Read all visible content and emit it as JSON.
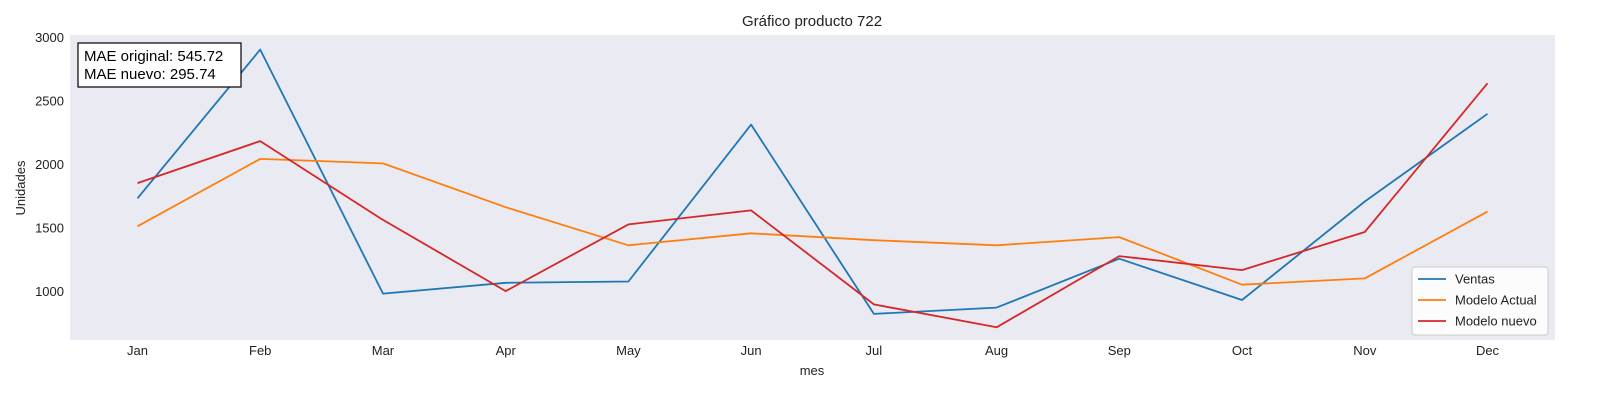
{
  "chart_data": {
    "type": "line",
    "title": "Gráfico producto 722",
    "xlabel": "mes",
    "ylabel": "Unidades",
    "categories": [
      "Jan",
      "Feb",
      "Mar",
      "Apr",
      "May",
      "Jun",
      "Jul",
      "Aug",
      "Sep",
      "Oct",
      "Nov",
      "Dec"
    ],
    "y_ticks": [
      1000,
      1500,
      2000,
      2500,
      3000
    ],
    "ylim": [
      620,
      3020
    ],
    "grid": false,
    "legend_position": "bottom-right",
    "series": [
      {
        "name": "Ventas",
        "color": "#1f77b4",
        "values": [
          1735,
          2905,
          985,
          1070,
          1080,
          2315,
          825,
          875,
          1260,
          935,
          1710,
          2400
        ]
      },
      {
        "name": "Modelo Actual",
        "color": "#ff7f0e",
        "values": [
          1515,
          2045,
          2010,
          1665,
          1365,
          1460,
          1405,
          1365,
          1430,
          1055,
          1105,
          1630
        ]
      },
      {
        "name": "Modelo nuevo",
        "color": "#d62728",
        "values": [
          1855,
          2185,
          1565,
          1005,
          1530,
          1640,
          900,
          720,
          1280,
          1170,
          1470,
          2640
        ]
      }
    ],
    "annotation": {
      "lines": [
        "MAE original: 545.72",
        "MAE nuevo: 295.74"
      ]
    }
  }
}
